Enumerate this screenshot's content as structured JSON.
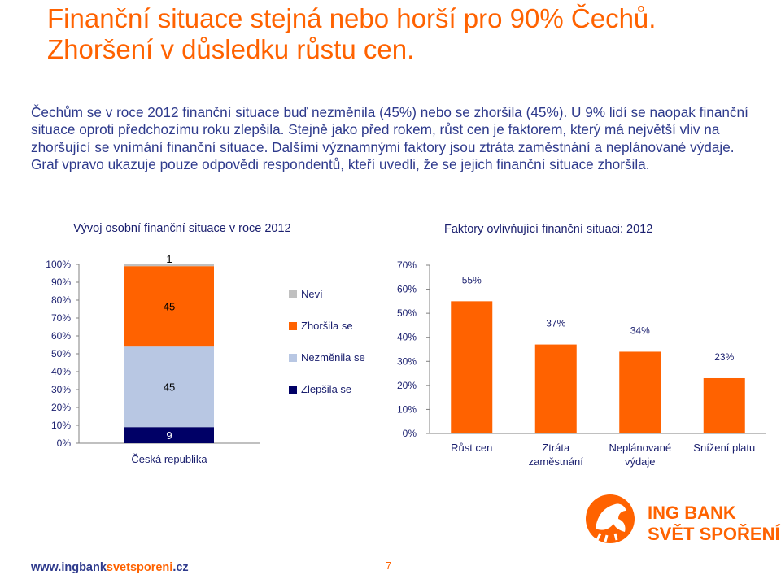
{
  "slide": {
    "title_line1": "Finanční situace stejná nebo horší pro 90% Čechů.",
    "title_line2": "Zhoršení v důsledku růstu cen.",
    "intro": "Čechům se v roce 2012 finanční situace buď nezměnila (45%) nebo se zhoršila (45%). U 9% lidí se naopak finanční situace oproti předchozímu roku zlepšila. Stejně jako před rokem, růst cen je faktorem, který má největší vliv na zhoršující se vnímání finanční situace. Dalšími významnými faktory jsou ztráta zaměstnání a neplánované výdaje. Graf vpravo ukazuje pouze odpovědi respondentů, kteří uvedli, že se jejich finanční situace zhoršila.",
    "footer_url_part1": "www.ingbank",
    "footer_url_part2": "svetsporeni",
    "footer_url_part3": ".cz",
    "page_number": "7",
    "logo_line1": "ING BANK",
    "logo_line2": "SVĚT SPOŘENÍ",
    "colors": {
      "orange": "#ff6200",
      "navy": "#000066",
      "light_blue": "#b8c7e3",
      "gray": "#c0c0c0",
      "text_blue": "#2e3a8c"
    }
  },
  "chart_data": [
    {
      "type": "bar",
      "stacked": true,
      "title": "Vývoj osobní finanční situace v roce 2012",
      "categories": [
        "Česká republika"
      ],
      "ylim": [
        0,
        100
      ],
      "yticks": [
        "0%",
        "10%",
        "20%",
        "30%",
        "40%",
        "50%",
        "60%",
        "70%",
        "80%",
        "90%",
        "100%"
      ],
      "series": [
        {
          "name": "Zlepšila se",
          "values": [
            9
          ],
          "color": "#000066",
          "label_color": "#ffffff"
        },
        {
          "name": "Nezměnila se",
          "values": [
            45
          ],
          "color": "#b8c7e3",
          "label_color": "#000000"
        },
        {
          "name": "Zhoršila se",
          "values": [
            45
          ],
          "color": "#ff6200",
          "label_color": "#000000"
        },
        {
          "name": "Neví",
          "values": [
            1
          ],
          "color": "#c0c0c0",
          "label_color": "#000000"
        }
      ],
      "legend_order": [
        "Neví",
        "Zhoršila se",
        "Nezměnila se",
        "Zlepšila se"
      ],
      "legend_position": "right"
    },
    {
      "type": "bar",
      "title": "Faktory ovlivňující finanční situaci: 2012",
      "categories": [
        [
          "Růst cen"
        ],
        [
          "Ztráta",
          "zaměstnání"
        ],
        [
          "Neplánované",
          "výdaje"
        ],
        [
          "Snížení platu"
        ]
      ],
      "values": [
        55,
        37,
        34,
        23
      ],
      "value_labels": [
        "55%",
        "37%",
        "34%",
        "23%"
      ],
      "ylim": [
        0,
        70
      ],
      "yticks": [
        "0%",
        "10%",
        "20%",
        "30%",
        "40%",
        "50%",
        "60%",
        "70%"
      ],
      "color": "#ff6200"
    }
  ]
}
